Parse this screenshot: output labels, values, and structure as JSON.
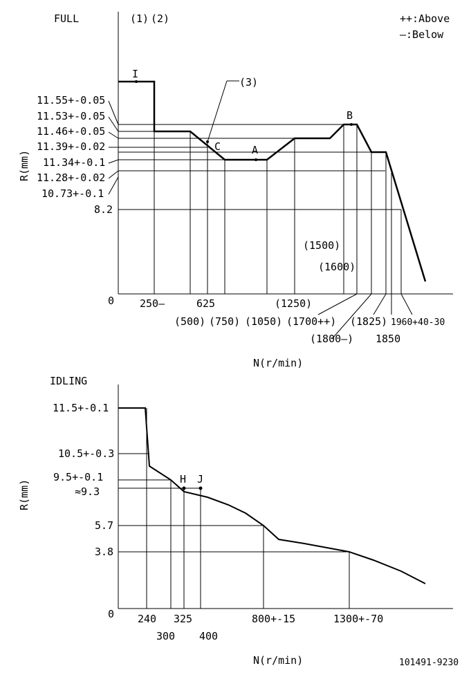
{
  "legend": {
    "above": "++:Above",
    "below": "—:Below"
  },
  "chart_data": [
    {
      "type": "line",
      "title": "FULL",
      "ylabel": "R(mm)",
      "xlabel": "N(r/min)",
      "markers": [
        "(1)",
        "(2)",
        "(3)"
      ],
      "y_ticks": [
        "11.55+-0.05",
        "11.53+-0.05",
        "11.46+-0.05",
        "11.39+-0.02",
        "11.34+-0.1",
        "11.28+-0.02",
        "10.73+-0.1",
        "8.2",
        "0"
      ],
      "x_ticks": [
        "250—",
        "625",
        "(1250)",
        "(500)",
        "(750)",
        "(1050)",
        "(1700++)",
        "(1825)",
        "1960+40-30",
        "(1800—)",
        "1850",
        "(1500)",
        "(1600)"
      ],
      "points": [
        "I",
        "C",
        "A",
        "B"
      ],
      "series": [
        {
          "x": [
            0,
            250,
            250,
            500,
            750,
            1050,
            1250,
            1500,
            1600,
            1700,
            1800,
            1850,
            2050
          ],
          "y": [
            11.55,
            11.55,
            11.39,
            11.39,
            11.28,
            11.28,
            11.46,
            11.46,
            11.53,
            11.53,
            11.34,
            11.34,
            8.2
          ]
        }
      ]
    },
    {
      "type": "line",
      "title": "IDLING",
      "ylabel": "R(mm)",
      "xlabel": "N(r/min)",
      "y_ticks": [
        "11.5+-0.1",
        "10.5+-0.3",
        "9.5+-0.1",
        "≈9.3",
        "5.7",
        "3.8",
        "0"
      ],
      "x_ticks": [
        "240",
        "325",
        "800+-15",
        "1300+-70",
        "300",
        "400"
      ],
      "points": [
        "H",
        "J"
      ],
      "series": [
        {
          "x": [
            0,
            200,
            240,
            300,
            325,
            400,
            800,
            900,
            1300,
            1800
          ],
          "y": [
            11.5,
            11.5,
            10.5,
            9.5,
            9.3,
            9.0,
            5.7,
            4.5,
            3.8,
            0
          ]
        }
      ]
    }
  ],
  "footer": {
    "code": "101491-9230"
  }
}
